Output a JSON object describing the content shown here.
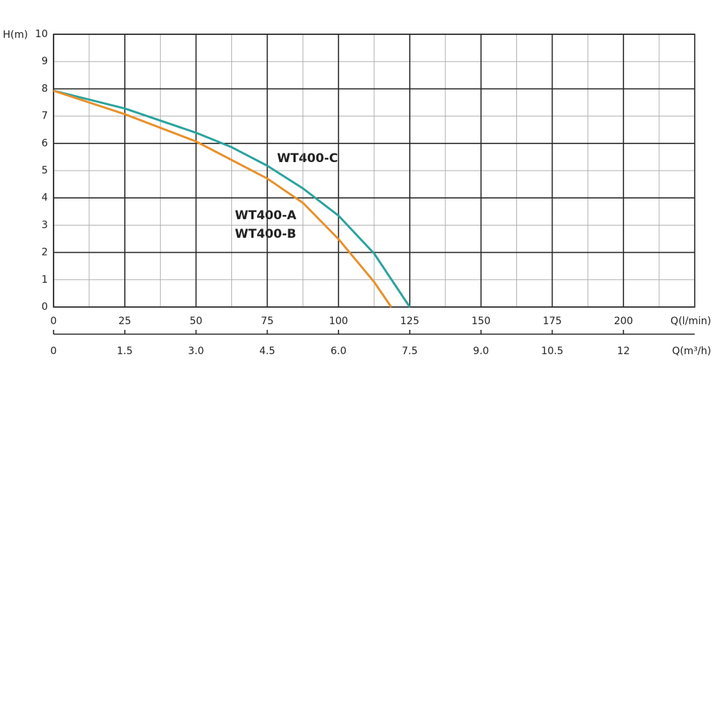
{
  "chart_data": {
    "type": "line",
    "ylabel": "H(m)",
    "xlabel": "Q(l/min)",
    "x2label": "Q(m³/h)",
    "xlim": [
      0,
      225
    ],
    "xticks": [
      0,
      25,
      50,
      75,
      100,
      125,
      150,
      175,
      200
    ],
    "xminorticks": [
      12.5,
      37.5,
      62.5,
      87.5,
      112.5,
      137.5,
      162.5,
      187.5,
      212.5
    ],
    "x2lim": [
      0,
      13.5
    ],
    "x2ticks": [
      0,
      1.5,
      {
        "value": 3,
        "label": "3.0"
      },
      4.5,
      {
        "value": 6,
        "label": "6.0"
      },
      7.5,
      {
        "value": 9,
        "label": "9.0"
      },
      10.5,
      12
    ],
    "ylim": [
      0,
      10
    ],
    "yticks": [
      0,
      1,
      2,
      3,
      4,
      5,
      6,
      7,
      8,
      9,
      10
    ],
    "yminorticks": [
      1,
      3,
      5,
      7,
      9
    ],
    "grid": true,
    "series": [
      {
        "name": "WT400-C",
        "color": "#2ba39e",
        "x": [
          0,
          25,
          50,
          62.5,
          75,
          87.5,
          100,
          112.5,
          125
        ],
        "values": [
          7.93,
          7.28,
          6.39,
          5.86,
          5.18,
          4.35,
          3.35,
          1.96,
          0
        ]
      },
      {
        "labels": [
          "WT400-A",
          "WT400-B"
        ],
        "color": "#e8912c",
        "x": [
          0,
          25,
          50,
          75,
          87.5,
          100,
          112.5,
          118.5
        ],
        "values": [
          7.93,
          7.07,
          6.07,
          4.71,
          3.82,
          2.49,
          0.92,
          0
        ]
      }
    ]
  }
}
